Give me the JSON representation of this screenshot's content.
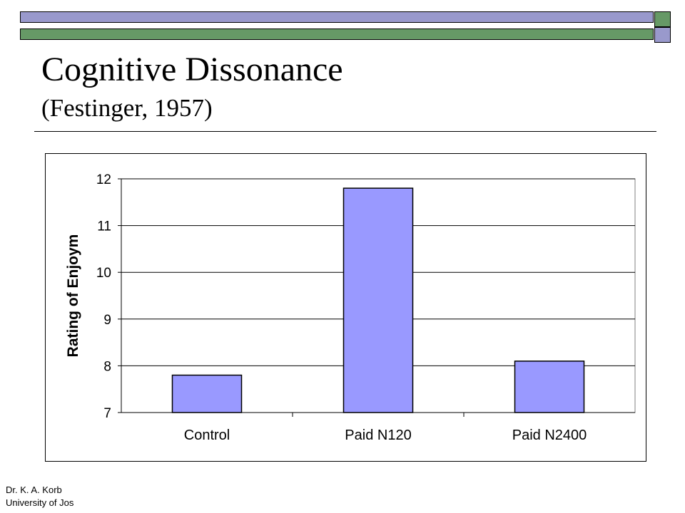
{
  "slide": {
    "title": "Cognitive Dissonance",
    "subtitle": "(Festinger, 1957)",
    "footer_line1": "Dr. K. A. Korb",
    "footer_line2": "University of Jos"
  },
  "colors": {
    "header_top_band": "#9999cc",
    "header_bottom_band": "#669966",
    "bar_fill": "#9999ff",
    "plot_bg": "#ffffff",
    "gridline": "#000000"
  },
  "chart_data": {
    "type": "bar",
    "title": "",
    "xlabel": "",
    "ylabel": "Rating of Enjoym",
    "categories": [
      "Control",
      "Paid N120",
      "Paid N2400"
    ],
    "series": [
      {
        "values": [
          7.8,
          11.8,
          8.1
        ]
      }
    ],
    "ylim": [
      7,
      12
    ],
    "yticks": [
      "7",
      "8",
      "9",
      "10",
      "11",
      "12"
    ],
    "grid": true,
    "legend": "none"
  }
}
